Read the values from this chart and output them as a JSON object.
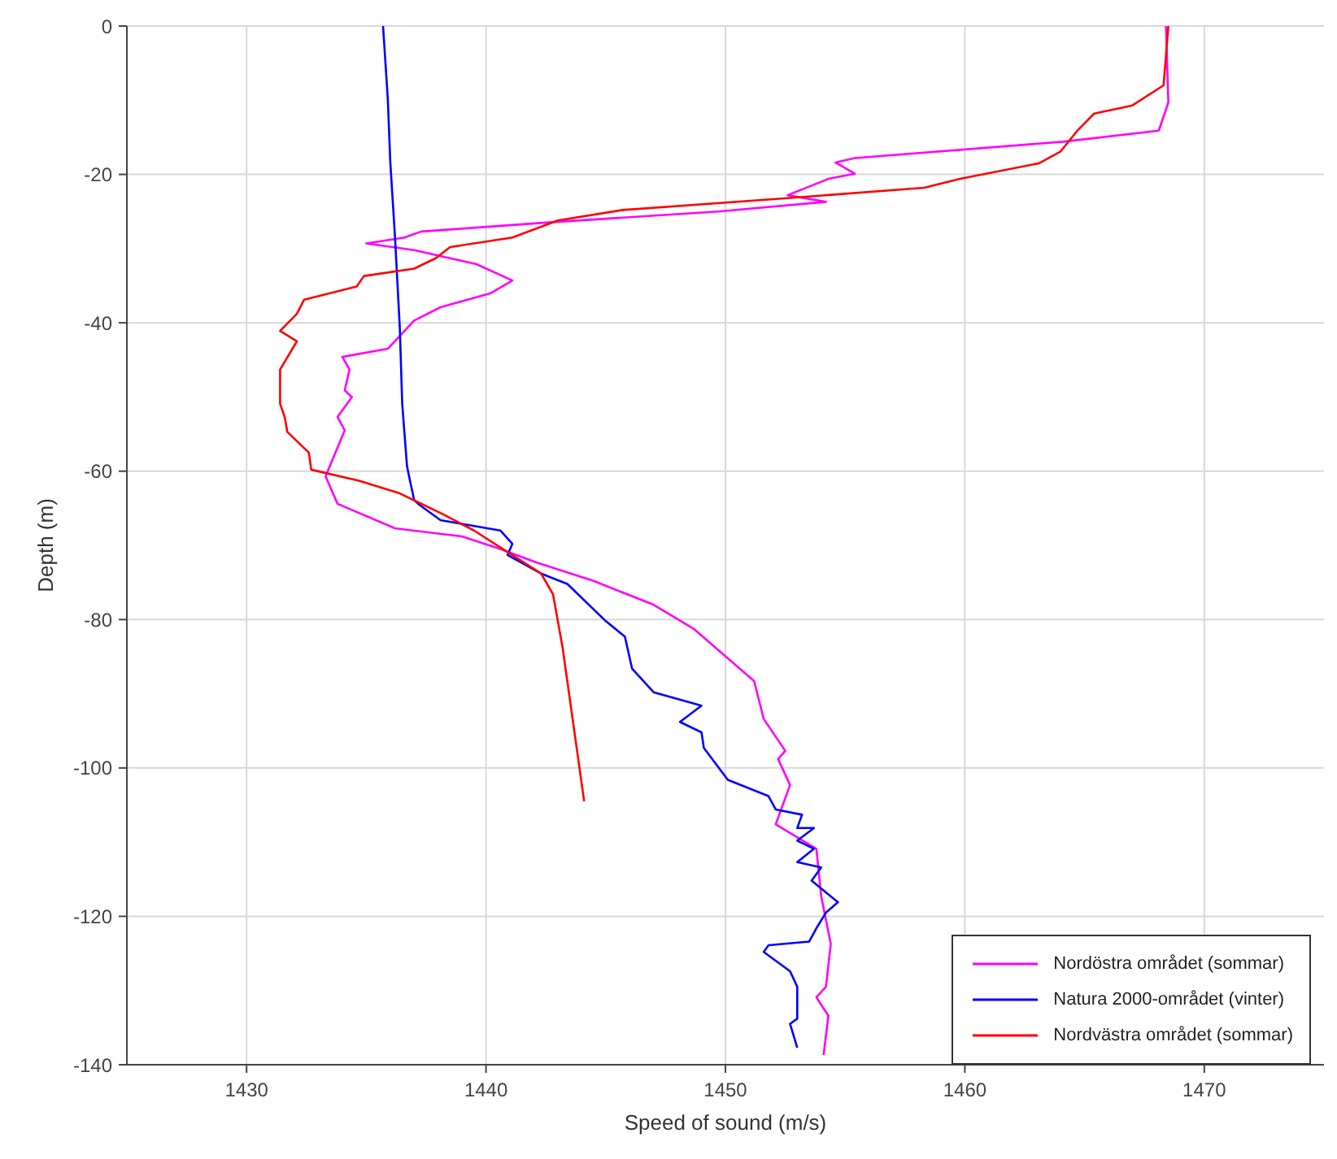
{
  "chart_data": {
    "type": "line",
    "xlabel": "Speed of sound (m/s)",
    "ylabel": "Depth (m)",
    "xlim": [
      1425,
      1475
    ],
    "xticks": [
      1430,
      1440,
      1450,
      1460,
      1470
    ],
    "ylim": [
      -140,
      0
    ],
    "yticks": [
      -140,
      -120,
      -100,
      -80,
      -60,
      -40,
      -20,
      0
    ],
    "grid": true,
    "legend": "bottom right",
    "marker": "none",
    "line_style": "solid",
    "series": [
      {
        "name": "Nordöstra området (sommar)",
        "color": "#ff00ff",
        "x": [
          1468.4,
          1468.5,
          1468.1,
          1464.1,
          1455.4,
          1454.6,
          1455.4,
          1454.3,
          1452.6,
          1454.2,
          1449.7,
          1442.5,
          1437.3,
          1436.6,
          1435.0,
          1437.0,
          1439.6,
          1441.1,
          1440.2,
          1438.1,
          1437.0,
          1435.9,
          1434.0,
          1434.3,
          1434.1,
          1434.4,
          1433.8,
          1434.1,
          1433.3,
          1433.8,
          1436.2,
          1439.0,
          1440.6,
          1442.1,
          1444.5,
          1447.0,
          1448.7,
          1451.2,
          1451.6,
          1452.5,
          1452.2,
          1452.7,
          1452.1,
          1453.8,
          1454.0,
          1454.4,
          1454.2,
          1453.8,
          1454.3,
          1454.1
        ],
        "values": [
          0,
          -10.3,
          -14.1,
          -15.6,
          -17.8,
          -18.4,
          -19.9,
          -20.6,
          -22.8,
          -23.7,
          -25.0,
          -26.5,
          -27.7,
          -28.5,
          -29.3,
          -30.2,
          -32.1,
          -34.3,
          -36.0,
          -37.9,
          -39.7,
          -43.5,
          -44.6,
          -46.3,
          -49.1,
          -50.0,
          -52.7,
          -54.5,
          -60.7,
          -64.4,
          -67.7,
          -68.8,
          -70.5,
          -72.3,
          -74.8,
          -78.0,
          -81.3,
          -88.3,
          -93.4,
          -97.7,
          -98.8,
          -102.3,
          -107.6,
          -110.9,
          -117.3,
          -123.7,
          -129.5,
          -130.9,
          -133.4,
          -138.7
        ]
      },
      {
        "name": "Natura 2000-området (vinter)",
        "color": "#0000ff",
        "x": [
          1435.7,
          1435.9,
          1436.0,
          1436.2,
          1436.4,
          1436.5,
          1436.7,
          1436.8,
          1437.0,
          1437.2,
          1438.1,
          1440.6,
          1441.1,
          1440.9,
          1442.3,
          1443.4,
          1445.0,
          1445.8,
          1446.1,
          1447.0,
          1449.0,
          1448.1,
          1449.0,
          1449.1,
          1450.1,
          1451.8,
          1452.1,
          1453.2,
          1453.0,
          1453.7,
          1453.0,
          1453.7,
          1453.0,
          1454.0,
          1453.6,
          1454.7,
          1454.2,
          1453.8,
          1453.5,
          1451.8,
          1451.6,
          1452.7,
          1453.0,
          1453.0,
          1452.7,
          1453.0
        ],
        "values": [
          0,
          -9.9,
          -18.2,
          -28.5,
          -40.7,
          -50.9,
          -59.3,
          -60.9,
          -63.9,
          -64.5,
          -66.6,
          -68.0,
          -69.8,
          -71.3,
          -73.8,
          -75.2,
          -80.2,
          -82.3,
          -86.6,
          -89.8,
          -91.6,
          -93.8,
          -95.2,
          -97.3,
          -101.6,
          -103.8,
          -105.6,
          -106.3,
          -108.1,
          -108.1,
          -109.8,
          -110.9,
          -112.7,
          -113.4,
          -115.2,
          -118.1,
          -119.5,
          -121.6,
          -123.4,
          -123.9,
          -124.8,
          -127.4,
          -129.5,
          -133.8,
          -134.5,
          -137.7
        ]
      },
      {
        "name": "Nordvästra området (sommar)",
        "color": "#ff0000",
        "x": [
          1468.5,
          1468.3,
          1467.0,
          1465.4,
          1464.7,
          1464.0,
          1463.1,
          1459.8,
          1458.3,
          1452.6,
          1445.7,
          1443.0,
          1441.1,
          1438.5,
          1437.9,
          1437.0,
          1434.9,
          1434.6,
          1432.4,
          1432.1,
          1431.4,
          1432.1,
          1431.4,
          1431.4,
          1431.6,
          1431.7,
          1432.6,
          1432.7,
          1434.7,
          1436.4,
          1438.2,
          1439.5,
          1442.3,
          1442.8,
          1443.2,
          1444.1
        ],
        "values": [
          0,
          -8.0,
          -10.7,
          -11.8,
          -14.1,
          -16.9,
          -18.5,
          -20.6,
          -21.8,
          -23.2,
          -24.8,
          -26.2,
          -28.5,
          -29.8,
          -31.3,
          -32.7,
          -33.7,
          -35.1,
          -36.9,
          -38.8,
          -41.1,
          -42.5,
          -46.3,
          -50.9,
          -52.8,
          -54.7,
          -57.5,
          -59.8,
          -61.3,
          -63.0,
          -65.8,
          -68.0,
          -73.8,
          -76.6,
          -83.8,
          -104.5
        ]
      }
    ]
  }
}
